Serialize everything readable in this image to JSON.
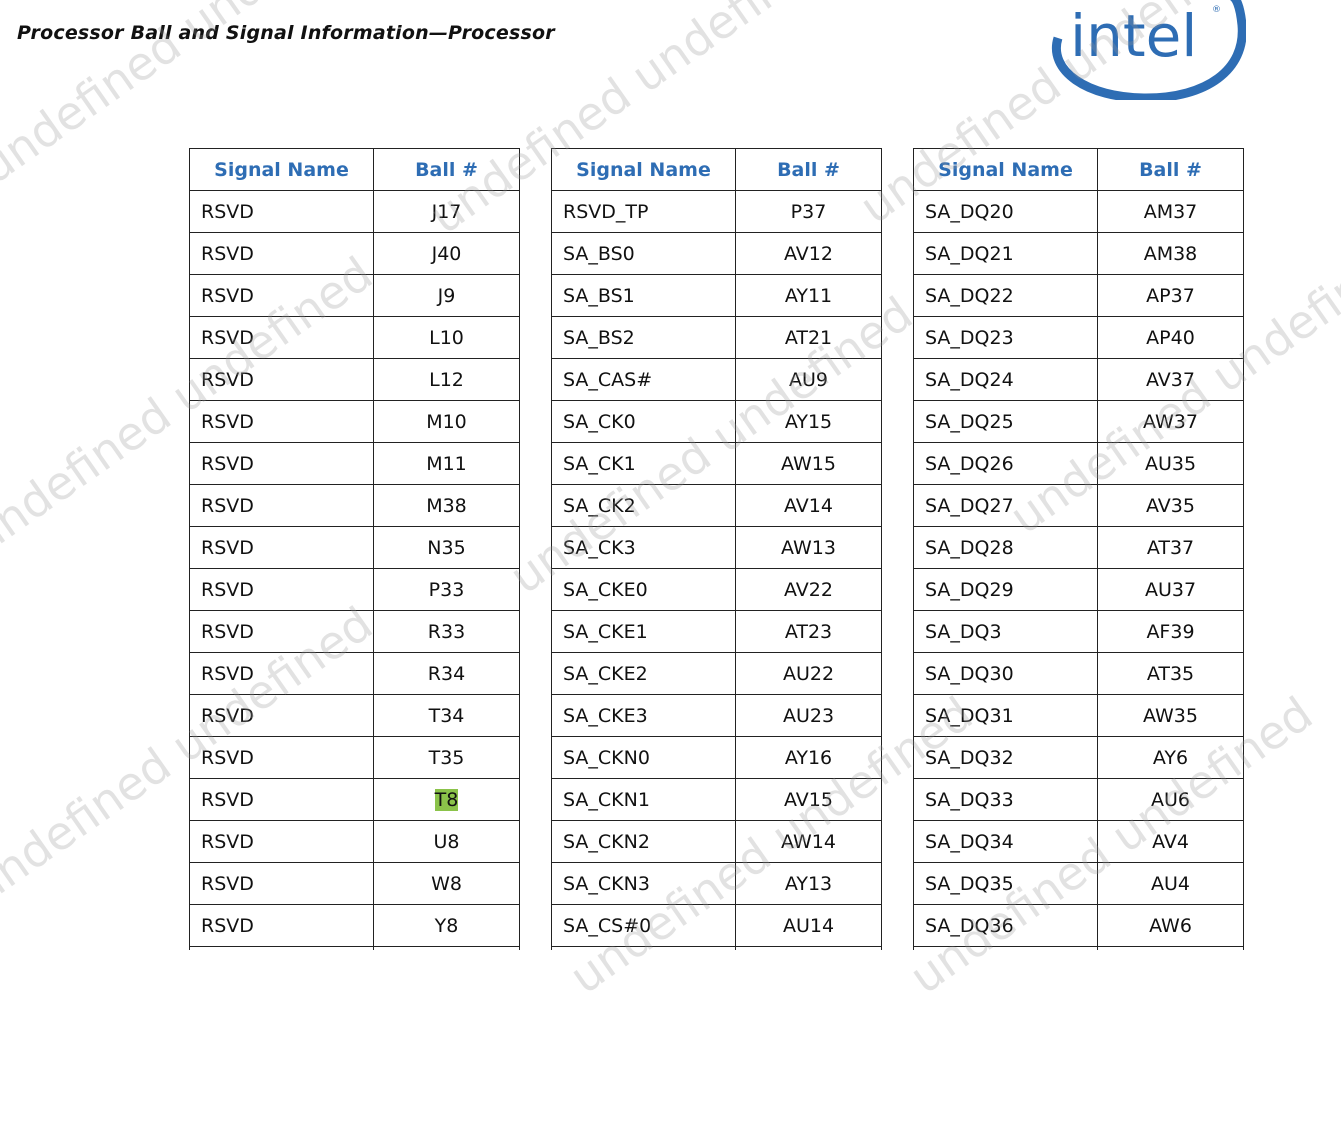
{
  "document": {
    "title": "Processor Ball and Signal Information—Processor",
    "logo_text": "intel",
    "watermark": "undefined undefined",
    "highlight_color": "#8bc34a",
    "header_color": "#2e6db4"
  },
  "tables": [
    {
      "headers": [
        "Signal Name",
        "Ball #"
      ],
      "rows": [
        [
          "RSVD",
          "J17"
        ],
        [
          "RSVD",
          "J40"
        ],
        [
          "RSVD",
          "J9"
        ],
        [
          "RSVD",
          "L10"
        ],
        [
          "RSVD",
          "L12"
        ],
        [
          "RSVD",
          "M10"
        ],
        [
          "RSVD",
          "M11"
        ],
        [
          "RSVD",
          "M38"
        ],
        [
          "RSVD",
          "N35"
        ],
        [
          "RSVD",
          "P33"
        ],
        [
          "RSVD",
          "R33"
        ],
        [
          "RSVD",
          "R34"
        ],
        [
          "RSVD",
          "T34"
        ],
        [
          "RSVD",
          "T35"
        ],
        [
          "RSVD",
          "T8"
        ],
        [
          "RSVD",
          "U8"
        ],
        [
          "RSVD",
          "W8"
        ],
        [
          "RSVD",
          "Y8"
        ]
      ],
      "highlighted_ball": "T8"
    },
    {
      "headers": [
        "Signal Name",
        "Ball #"
      ],
      "rows": [
        [
          "RSVD_TP",
          "P37"
        ],
        [
          "SA_BS0",
          "AV12"
        ],
        [
          "SA_BS1",
          "AY11"
        ],
        [
          "SA_BS2",
          "AT21"
        ],
        [
          "SA_CAS#",
          "AU9"
        ],
        [
          "SA_CK0",
          "AY15"
        ],
        [
          "SA_CK1",
          "AW15"
        ],
        [
          "SA_CK2",
          "AV14"
        ],
        [
          "SA_CK3",
          "AW13"
        ],
        [
          "SA_CKE0",
          "AV22"
        ],
        [
          "SA_CKE1",
          "AT23"
        ],
        [
          "SA_CKE2",
          "AU22"
        ],
        [
          "SA_CKE3",
          "AU23"
        ],
        [
          "SA_CKN0",
          "AY16"
        ],
        [
          "SA_CKN1",
          "AV15"
        ],
        [
          "SA_CKN2",
          "AW14"
        ],
        [
          "SA_CKN3",
          "AY13"
        ],
        [
          "SA_CS#0",
          "AU14"
        ]
      ]
    },
    {
      "headers": [
        "Signal Name",
        "Ball #"
      ],
      "rows": [
        [
          "SA_DQ20",
          "AM37"
        ],
        [
          "SA_DQ21",
          "AM38"
        ],
        [
          "SA_DQ22",
          "AP37"
        ],
        [
          "SA_DQ23",
          "AP40"
        ],
        [
          "SA_DQ24",
          "AV37"
        ],
        [
          "SA_DQ25",
          "AW37"
        ],
        [
          "SA_DQ26",
          "AU35"
        ],
        [
          "SA_DQ27",
          "AV35"
        ],
        [
          "SA_DQ28",
          "AT37"
        ],
        [
          "SA_DQ29",
          "AU37"
        ],
        [
          "SA_DQ3",
          "AF39"
        ],
        [
          "SA_DQ30",
          "AT35"
        ],
        [
          "SA_DQ31",
          "AW35"
        ],
        [
          "SA_DQ32",
          "AY6"
        ],
        [
          "SA_DQ33",
          "AU6"
        ],
        [
          "SA_DQ34",
          "AV4"
        ],
        [
          "SA_DQ35",
          "AU4"
        ],
        [
          "SA_DQ36",
          "AW6"
        ]
      ]
    }
  ]
}
